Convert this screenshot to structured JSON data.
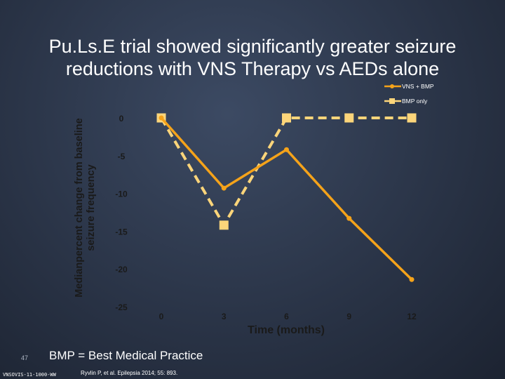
{
  "slide": {
    "title": "Pu.Ls.E trial showed significantly greater seizure reductions with VNS Therapy vs AEDs alone",
    "footnote": "BMP = Best Medical Practice",
    "page_number": "47",
    "doc_code": "VNSOVIS-11-1000-WW",
    "citation": "Ryvlin P, et al. Epilepsia 2014; 55: 893."
  },
  "colors": {
    "vns": "#f5a31a",
    "bmp": "#fcd57a",
    "axis_text": "#1a1a1a"
  },
  "chart_data": {
    "type": "line",
    "title": "",
    "xlabel": "Time (months)",
    "ylabel": "Medianpercent change from baseline seizure frequency",
    "x": [
      0,
      3,
      6,
      9,
      12
    ],
    "ylim": [
      -25,
      0
    ],
    "xticks": [
      "0",
      "3",
      "6",
      "9",
      "12"
    ],
    "yticks": [
      "0",
      "-5",
      "-10",
      "-15",
      "-20",
      "-25"
    ],
    "legend_position": "top-right",
    "series": [
      {
        "name": "VNS + BMP",
        "marker": "circle",
        "line": "solid",
        "values": [
          0,
          -9.3,
          -4.2,
          -13.3,
          -21.4
        ]
      },
      {
        "name": "BMP only",
        "marker": "square",
        "line": "dashed",
        "values": [
          0,
          -14.2,
          0,
          0,
          0
        ],
        "x": [
          0,
          3,
          6,
          9,
          12
        ]
      }
    ]
  }
}
